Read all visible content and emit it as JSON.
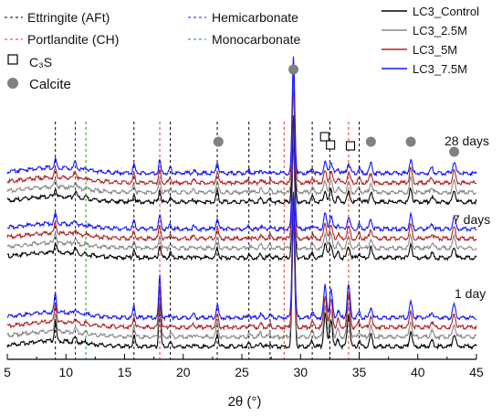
{
  "chart_data": {
    "type": "line",
    "title": "",
    "xlabel": "2θ (°)",
    "ylabel": "",
    "xlim": [
      5,
      45
    ],
    "x_ticks": [
      5,
      10,
      15,
      20,
      25,
      30,
      35,
      40,
      45
    ],
    "x_tick_labels": [
      "5",
      "10",
      "15",
      "20",
      "25",
      "30",
      "35",
      "40",
      "45"
    ],
    "grid": false,
    "legend_position": "top-right",
    "series": [
      {
        "name": "LC3_Control",
        "color": "#000000",
        "offset": 0
      },
      {
        "name": "LC3_2.5M",
        "color": "#888888",
        "offset": 1
      },
      {
        "name": "LC3_5M",
        "color": "#b22222",
        "offset": 2
      },
      {
        "name": "LC3_7.5M",
        "color": "#1414ff",
        "offset": 3
      }
    ],
    "groups": [
      {
        "label": "1 day",
        "group_index": 0
      },
      {
        "label": "7 days",
        "group_index": 1
      },
      {
        "label": "28 days",
        "group_index": 2
      }
    ],
    "phase_legend": [
      {
        "label": "Ettringite (AFt)",
        "color": "#000000",
        "style": "dashed"
      },
      {
        "label": "Portlandite (CH)",
        "color": "#e03030",
        "style": "dashed"
      },
      {
        "label": "Hemicarbonate",
        "color": "#1414ff",
        "style": "dashed"
      },
      {
        "label": "Monocarbonate",
        "color": "#1a9a1a",
        "style": "dashed"
      },
      {
        "label": "C₃S",
        "marker": "open-square"
      },
      {
        "label": "Calcite",
        "marker": "filled-circle",
        "color": "#808080"
      }
    ],
    "reference_lines": [
      {
        "phase": "Ettringite (AFt)",
        "color": "#000000",
        "x": [
          9.1,
          15.8,
          18.9,
          22.9,
          25.6,
          27.4,
          31.0,
          32.5,
          35.0
        ]
      },
      {
        "phase": "Portlandite (CH)",
        "color": "#e03030",
        "x": [
          18.0,
          28.6,
          34.1
        ]
      },
      {
        "phase": "Hemicarbonate",
        "color": "#1414ff",
        "x": [
          10.8
        ]
      },
      {
        "phase": "Monocarbonate",
        "color": "#1a9a1a",
        "x": [
          11.7
        ]
      }
    ],
    "markers": [
      {
        "phase": "Calcite",
        "shape": "filled-circle",
        "x": [
          23.0,
          29.4,
          36.0,
          39.4,
          43.1
        ]
      },
      {
        "phase": "C₃S",
        "shape": "open-square",
        "x": [
          32.1,
          32.6,
          34.3
        ]
      }
    ],
    "peaks": [
      {
        "x": 9.1,
        "w": 0.09,
        "h": [
          20,
          12,
          10
        ]
      },
      {
        "x": 10.8,
        "w": 0.12,
        "h": [
          5,
          6,
          8
        ]
      },
      {
        "x": 11.7,
        "w": 0.1,
        "h": [
          2,
          2,
          3
        ]
      },
      {
        "x": 15.8,
        "w": 0.09,
        "h": [
          12,
          10,
          10
        ]
      },
      {
        "x": 18.0,
        "w": 0.09,
        "h": [
          45,
          16,
          16
        ]
      },
      {
        "x": 18.9,
        "w": 0.09,
        "h": [
          4,
          6,
          7
        ]
      },
      {
        "x": 20.9,
        "w": 0.1,
        "h": [
          3,
          3,
          3
        ]
      },
      {
        "x": 22.9,
        "w": 0.1,
        "h": [
          14,
          12,
          13
        ]
      },
      {
        "x": 25.6,
        "w": 0.1,
        "h": [
          3,
          3,
          3
        ]
      },
      {
        "x": 26.6,
        "w": 0.1,
        "h": [
          4,
          4,
          4
        ]
      },
      {
        "x": 27.4,
        "w": 0.1,
        "h": [
          3,
          3,
          3
        ]
      },
      {
        "x": 29.4,
        "w": 0.11,
        "h": [
          140,
          140,
          140
        ]
      },
      {
        "x": 31.0,
        "w": 0.1,
        "h": [
          6,
          6,
          6
        ]
      },
      {
        "x": 32.1,
        "w": 0.12,
        "h": [
          35,
          18,
          14
        ]
      },
      {
        "x": 32.6,
        "w": 0.12,
        "h": [
          30,
          16,
          14
        ]
      },
      {
        "x": 33.2,
        "w": 0.1,
        "h": [
          8,
          6,
          6
        ]
      },
      {
        "x": 34.1,
        "w": 0.12,
        "h": [
          35,
          14,
          12
        ]
      },
      {
        "x": 35.0,
        "w": 0.1,
        "h": [
          6,
          6,
          6
        ]
      },
      {
        "x": 36.0,
        "w": 0.11,
        "h": [
          12,
          12,
          12
        ]
      },
      {
        "x": 39.4,
        "w": 0.11,
        "h": [
          17,
          17,
          17
        ]
      },
      {
        "x": 41.2,
        "w": 0.12,
        "h": [
          6,
          6,
          6
        ]
      },
      {
        "x": 43.1,
        "w": 0.12,
        "h": [
          14,
          14,
          14
        ]
      }
    ]
  }
}
